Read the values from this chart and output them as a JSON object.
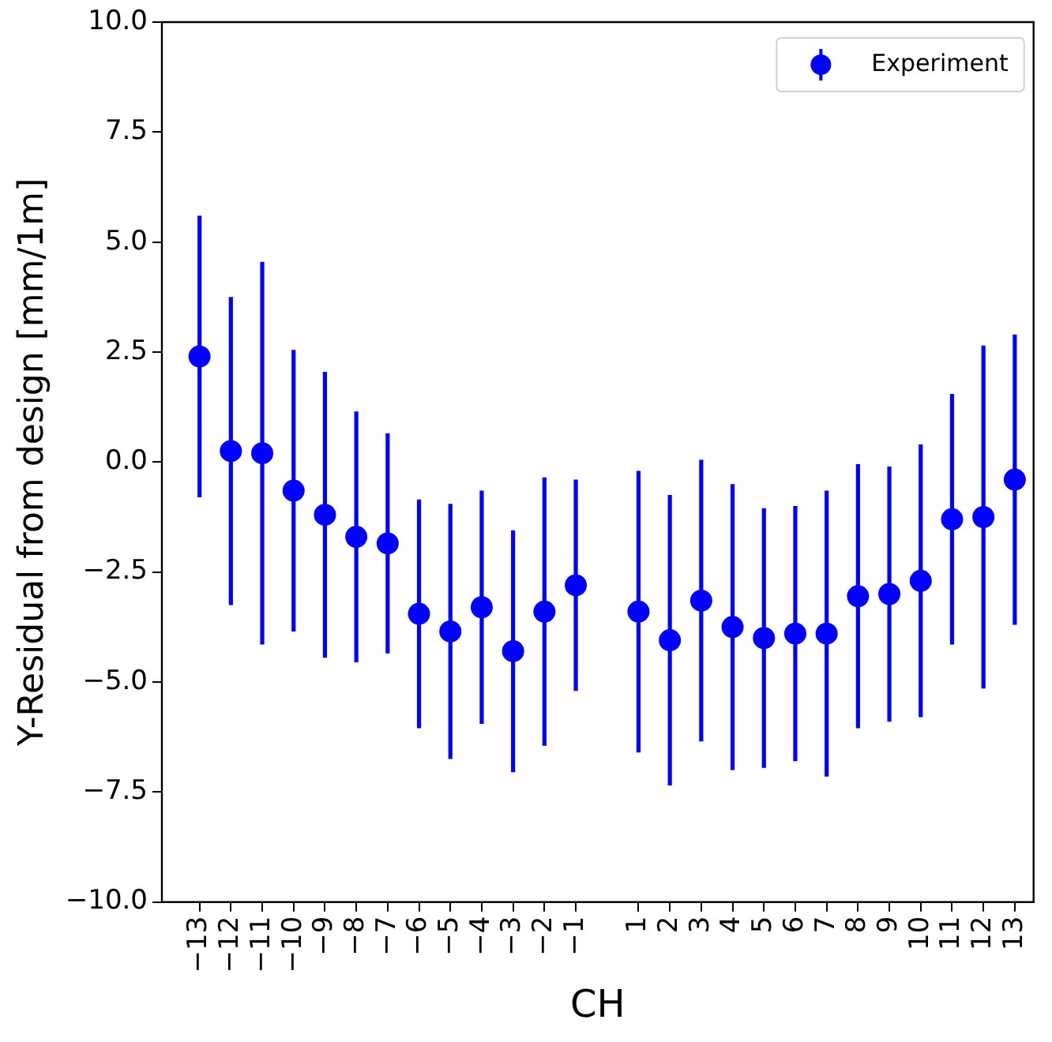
{
  "chart_data": {
    "type": "scatter",
    "xlabel": "CH",
    "ylabel": "Y-Residual from design [mm/1m]",
    "x": [
      -13,
      -12,
      -11,
      -10,
      -9,
      -8,
      -7,
      -6,
      -5,
      -4,
      -3,
      -2,
      -1,
      1,
      2,
      3,
      4,
      5,
      6,
      7,
      8,
      9,
      10,
      11,
      12,
      13
    ],
    "series": [
      {
        "name": "Experiment",
        "color": "#0000ff",
        "values": [
          2.4,
          0.25,
          0.2,
          -0.65,
          -1.2,
          -1.7,
          -1.85,
          -3.45,
          -3.85,
          -3.3,
          -4.3,
          -3.4,
          -2.8,
          -3.4,
          -4.05,
          -3.15,
          -3.75,
          -4.0,
          -3.9,
          -3.9,
          -3.05,
          -3.0,
          -2.7,
          -1.3,
          -1.25,
          -0.4
        ],
        "errors": [
          3.2,
          3.5,
          4.35,
          3.2,
          3.25,
          2.85,
          2.5,
          2.6,
          2.9,
          2.65,
          2.75,
          3.05,
          2.4,
          3.2,
          3.3,
          3.2,
          3.25,
          2.95,
          2.9,
          3.25,
          3.0,
          2.9,
          3.1,
          2.85,
          3.9,
          3.3
        ]
      }
    ],
    "xlim": [
      -14.2,
      13.6
    ],
    "xticks": [
      -13,
      -12,
      -11,
      -10,
      -9,
      -8,
      -7,
      -6,
      -5,
      -4,
      -3,
      -2,
      -1,
      1,
      2,
      3,
      4,
      5,
      6,
      7,
      8,
      9,
      10,
      11,
      12,
      13
    ],
    "ylim": [
      -10,
      10
    ],
    "yticks": [
      {
        "value": -10,
        "label": "−10.0"
      },
      {
        "value": -7.5,
        "label": "−7.5"
      },
      {
        "value": -5,
        "label": "−5.0"
      },
      {
        "value": -2.5,
        "label": "−2.5"
      },
      {
        "value": 0,
        "label": "0.0"
      },
      {
        "value": 2.5,
        "label": "2.5"
      },
      {
        "value": 5,
        "label": "5.0"
      },
      {
        "value": 7.5,
        "label": "7.5"
      },
      {
        "value": 10,
        "label": "10.0"
      }
    ],
    "grid": false,
    "legend": "top right",
    "marker": "circle"
  }
}
